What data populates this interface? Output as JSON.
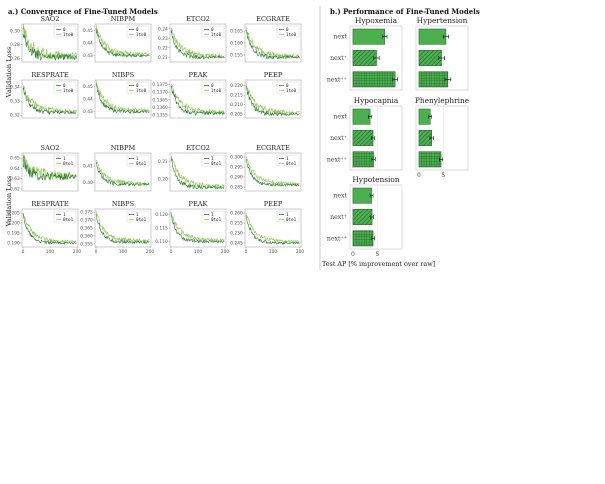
{
  "section_a": {
    "title": "a.) Convergence of Fine-Tuned Models"
  },
  "section_b": {
    "title": "b.) Performance of Fine-Tuned Models"
  },
  "chart_data": [
    {
      "type": "line",
      "group": "Convergence of Fine-Tuned Models (panel group 1)",
      "ylabel": "Validation Loss",
      "x_range": [
        0,
        200
      ],
      "legend": [
        "0",
        "1to0"
      ],
      "subplots": [
        {
          "title": "SAO2",
          "yticks": [
            "0.30",
            "0.28",
            "0.26"
          ],
          "ylim": [
            0.255,
            0.31
          ],
          "start": 0.3,
          "end": 0.262,
          "noise": 0.008
        },
        {
          "title": "NIBPM",
          "yticks": [
            "0.45",
            "0.44",
            "0.43"
          ],
          "ylim": [
            0.425,
            0.455
          ],
          "start": 0.451,
          "end": 0.43,
          "noise": 0.002
        },
        {
          "title": "ETCO2",
          "yticks": [
            "0.24",
            "0.23",
            "0.22",
            "0.21"
          ],
          "ylim": [
            0.205,
            0.245
          ],
          "start": 0.238,
          "end": 0.21,
          "noise": 0.003
        },
        {
          "title": "ECGRATE",
          "yticks": [
            "0.165",
            "0.160",
            "0.155"
          ],
          "ylim": [
            0.152,
            0.168
          ],
          "start": 0.165,
          "end": 0.154,
          "noise": 0.0012
        },
        {
          "title": "RESPRATE",
          "yticks": [
            "0.34",
            "0.33",
            "0.32"
          ],
          "ylim": [
            0.318,
            0.345
          ],
          "start": 0.34,
          "end": 0.322,
          "noise": 0.002
        },
        {
          "title": "NIBPS",
          "yticks": [
            "0.45",
            "0.44",
            "0.43"
          ],
          "ylim": [
            0.425,
            0.455
          ],
          "start": 0.452,
          "end": 0.43,
          "noise": 0.002
        },
        {
          "title": "PEAK",
          "yticks": [
            "0.1375",
            "0.1370",
            "0.1365",
            "0.1360",
            "0.1355"
          ],
          "ylim": [
            0.1353,
            0.1378
          ],
          "start": 0.1375,
          "end": 0.1356,
          "noise": 0.0002
        },
        {
          "title": "PEEP",
          "yticks": [
            "0.220",
            "0.215",
            "0.210",
            "0.205"
          ],
          "ylim": [
            0.203,
            0.223
          ],
          "start": 0.22,
          "end": 0.205,
          "noise": 0.0015
        }
      ]
    },
    {
      "type": "line",
      "group": "Convergence of Fine-Tuned Models (panel group 2)",
      "ylabel": "Validation Loss",
      "x_range": [
        0,
        200
      ],
      "xticks": [
        "0",
        "100",
        "200"
      ],
      "legend": [
        "1",
        "0to1"
      ],
      "subplots": [
        {
          "title": "SAO2",
          "yticks": [
            "0.65",
            "0.64",
            "0.63",
            "0.62"
          ],
          "ylim": [
            0.618,
            0.655
          ],
          "start": 0.648,
          "end": 0.632,
          "noise": 0.006
        },
        {
          "title": "NIBPM",
          "yticks": [
            "0.41",
            "0.40"
          ],
          "ylim": [
            0.395,
            0.418
          ],
          "start": 0.412,
          "end": 0.399,
          "noise": 0.0015
        },
        {
          "title": "ETCO2",
          "yticks": [
            "0.21",
            "0.20"
          ],
          "ylim": [
            0.193,
            0.215
          ],
          "start": 0.212,
          "end": 0.195,
          "noise": 0.0015
        },
        {
          "title": "ECGRATE",
          "yticks": [
            "0.300",
            "0.295",
            "0.290",
            "0.285"
          ],
          "ylim": [
            0.283,
            0.302
          ],
          "start": 0.299,
          "end": 0.286,
          "noise": 0.001
        },
        {
          "title": "RESPRATE",
          "yticks": [
            "0.205",
            "0.200",
            "0.195",
            "0.190"
          ],
          "ylim": [
            0.188,
            0.207
          ],
          "start": 0.204,
          "end": 0.19,
          "noise": 0.001
        },
        {
          "title": "NIBPS",
          "yticks": [
            "0.375",
            "0.370",
            "0.365",
            "0.360",
            "0.355"
          ],
          "ylim": [
            0.353,
            0.377
          ],
          "start": 0.374,
          "end": 0.356,
          "noise": 0.0015
        },
        {
          "title": "PEAK",
          "yticks": [
            "0.120",
            "0.115",
            "0.110"
          ],
          "ylim": [
            0.108,
            0.122
          ],
          "start": 0.12,
          "end": 0.11,
          "noise": 0.0008
        },
        {
          "title": "PEEP",
          "yticks": [
            "0.260",
            "0.255",
            "0.250",
            "0.245"
          ],
          "ylim": [
            0.243,
            0.262
          ],
          "start": 0.259,
          "end": 0.245,
          "noise": 0.001
        }
      ]
    },
    {
      "type": "bar",
      "orientation": "horizontal",
      "group": "Performance of Fine-Tuned Models",
      "xlabel": "Test AP [% improvement over raw]",
      "xticks": [
        0,
        5
      ],
      "xlim": [
        -0.6,
        10
      ],
      "categories": [
        "next",
        "next⁺",
        "next⁺⁺"
      ],
      "hatches": [
        "solid",
        "diagonal",
        "grid"
      ],
      "subplots": [
        {
          "title": "Hypoxemia",
          "values": [
            6.5,
            4.8,
            8.6
          ],
          "errors": [
            0.45,
            0.55,
            0.5
          ]
        },
        {
          "title": "Hypertension",
          "values": [
            5.5,
            4.6,
            5.9
          ],
          "errors": [
            0.55,
            0.6,
            0.6
          ]
        },
        {
          "title": "Hypocapnia",
          "values": [
            3.5,
            4.1,
            4.2
          ],
          "errors": [
            0.35,
            0.35,
            0.35
          ]
        },
        {
          "title": "Phenylephrine",
          "values": [
            2.3,
            2.6,
            4.5
          ],
          "errors": [
            0.3,
            0.35,
            0.35
          ]
        },
        {
          "title": "Hypotension",
          "values": [
            3.8,
            3.9,
            4.1
          ],
          "errors": [
            0.3,
            0.3,
            0.3
          ]
        }
      ]
    }
  ],
  "colors": {
    "dark_green": "#2e7d32",
    "light_green": "#8bc34a",
    "bar_green": "#4caf50",
    "bar_edge": "#1b5e20",
    "divider": "#bdbdbd"
  }
}
